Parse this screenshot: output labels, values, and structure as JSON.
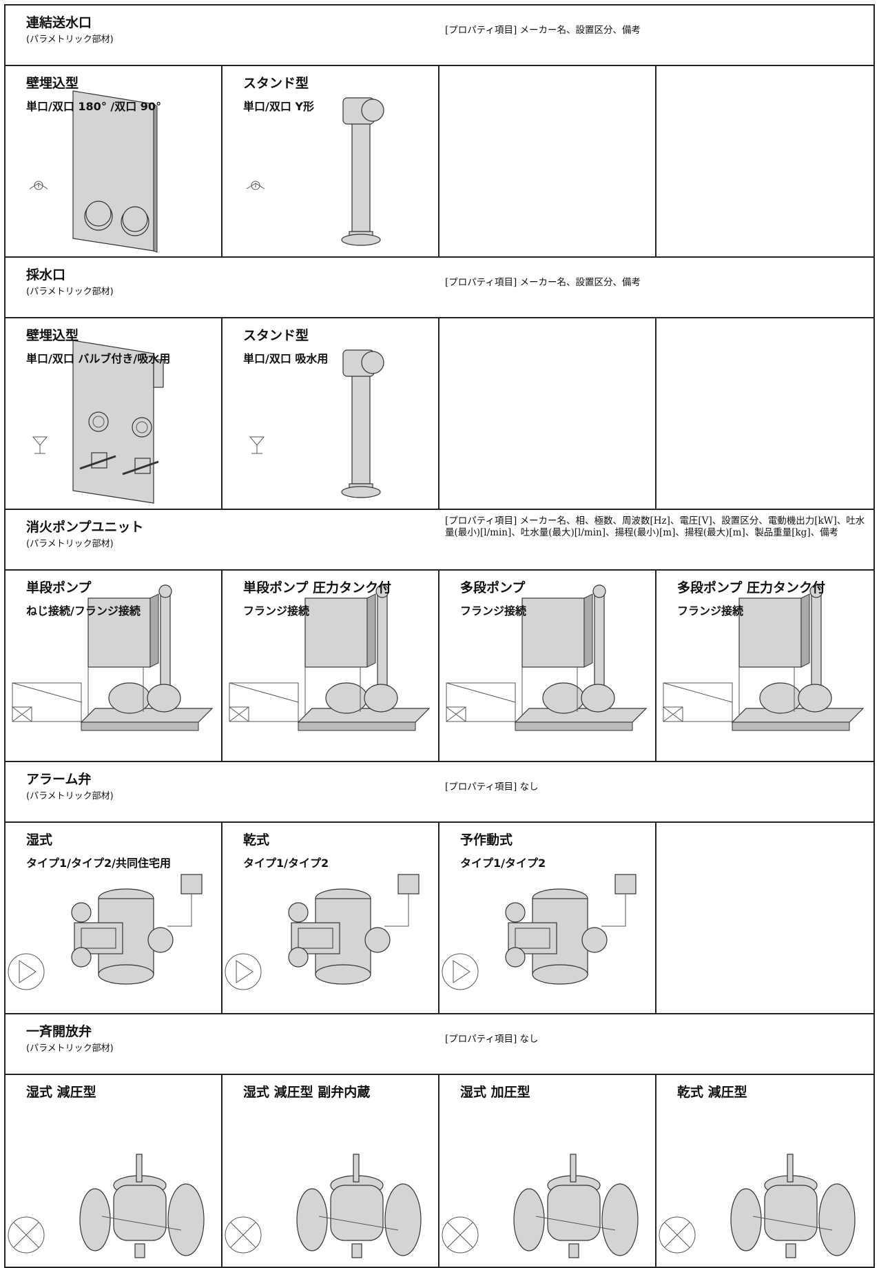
{
  "sections": [
    {
      "title": "連結送水口",
      "subtitle": "(パラメトリック部材)",
      "properties": "[プロパティ項目] メーカー名、設置区分、備考",
      "items": [
        {
          "name": "壁埋込型",
          "variant": "単口/双口 180° /双口 90°"
        },
        {
          "name": "スタンド型",
          "variant": "単口/双口 Y形"
        }
      ]
    },
    {
      "title": "採水口",
      "subtitle": "(パラメトリック部材)",
      "properties": "[プロパティ項目] メーカー名、設置区分、備考",
      "items": [
        {
          "name": "壁埋込型",
          "variant": "単口/双口 バルブ付き/吸水用"
        },
        {
          "name": "スタンド型",
          "variant": "単口/双口 吸水用"
        }
      ]
    },
    {
      "title": "消火ポンプユニット",
      "subtitle": "(パラメトリック部材)",
      "properties": "[プロパティ項目] メーカー名、相、極数、周波数[Hz]、電圧[V]、設置区分、電動機出力[kW]、吐水量(最小)[l/min]、吐水量(最大)[l/min]、揚程(最小)[m]、揚程(最大)[m]、製品重量[kg]、備考",
      "items": [
        {
          "name": "単段ポンプ",
          "variant": "ねじ接続/フランジ接続"
        },
        {
          "name": "単段ポンプ 圧力タンク付",
          "variant": "フランジ接続"
        },
        {
          "name": "多段ポンプ",
          "variant": "フランジ接続"
        },
        {
          "name": "多段ポンプ 圧力タンク付",
          "variant": "フランジ接続"
        }
      ]
    },
    {
      "title": "アラーム弁",
      "subtitle": "(パラメトリック部材)",
      "properties": "[プロパティ項目] なし",
      "items": [
        {
          "name": "湿式",
          "variant": "タイプ1/タイプ2/共同住宅用"
        },
        {
          "name": "乾式",
          "variant": "タイプ1/タイプ2"
        },
        {
          "name": "予作動式",
          "variant": "タイプ1/タイプ2"
        }
      ]
    },
    {
      "title": "一斉開放弁",
      "subtitle": "(パラメトリック部材)",
      "properties": "[プロパティ項目] なし",
      "items": [
        {
          "name": "湿式 減圧型"
        },
        {
          "name": "湿式 減圧型 副弁内蔵"
        },
        {
          "name": "湿式 加圧型"
        },
        {
          "name": "乾式 減圧型"
        }
      ]
    }
  ]
}
